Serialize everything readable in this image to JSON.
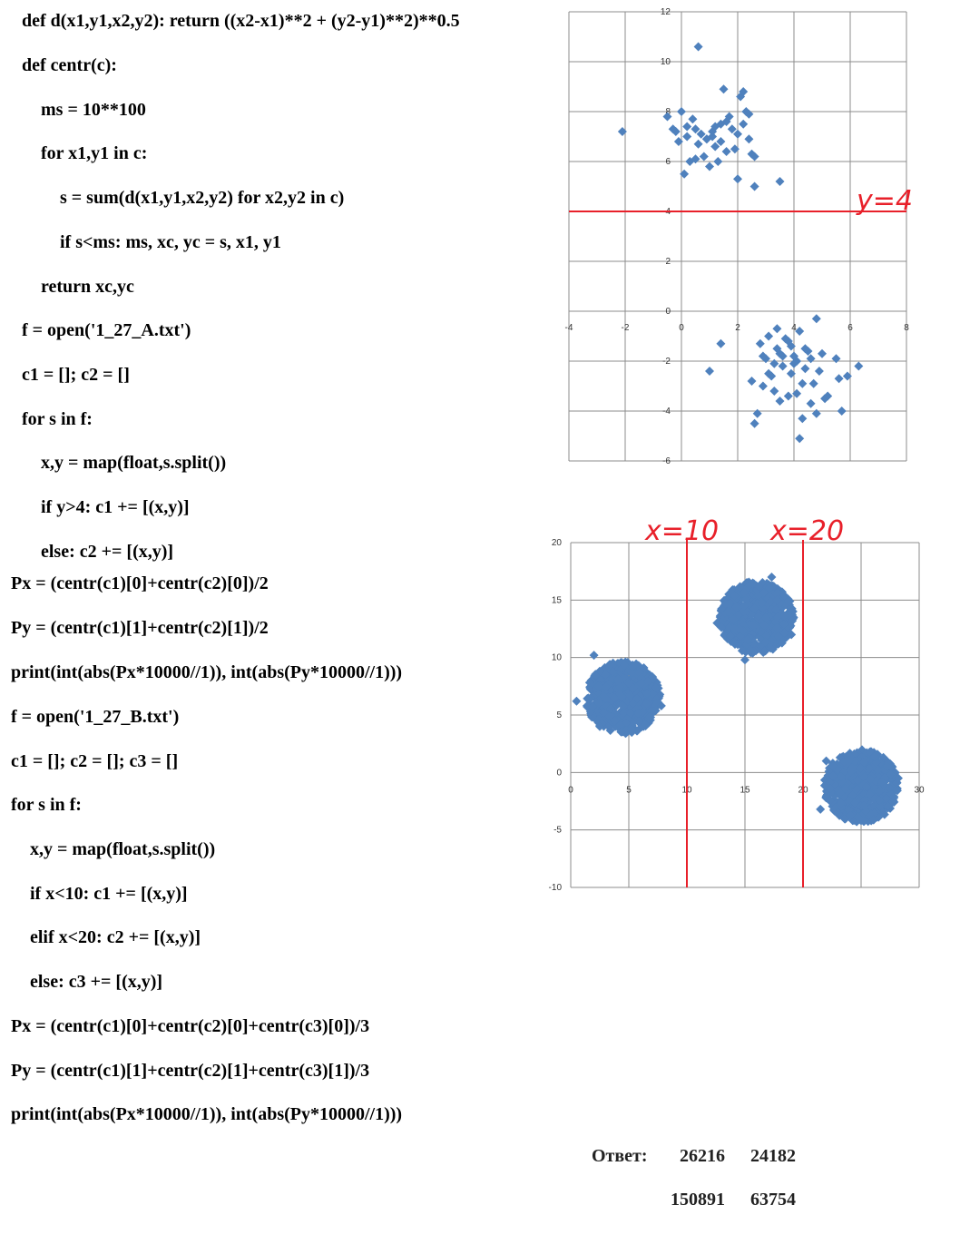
{
  "code": {
    "lines": [
      "def d(x1,y1,x2,y2): return ((x2-x1)**2 + (y2-y1)**2)**0.5",
      "def centr(c):",
      "ms = 10**100",
      "for x1,y1 in c:",
      "s = sum(d(x1,y1,x2,y2) for x2,y2 in c)",
      "if s<ms: ms, xc, yc = s, x1, y1",
      "return xc,yc",
      "f = open('1_27_A.txt')",
      "c1 = []; c2 = []",
      "for s in f:",
      "x,y = map(float,s.split())",
      "if y>4: c1 += [(x,y)]",
      "else: c2 += [(x,y)]",
      "Px = (centr(c1)[0]+centr(c2)[0])/2",
      "Py = (centr(c1)[1]+centr(c2)[1])/2",
      "print(int(abs(Px*10000//1)), int(abs(Py*10000//1)))",
      "f = open('1_27_B.txt')",
      "c1 = []; c2 = []; c3 = []",
      "for s in f:",
      "x,y = map(float,s.split())",
      "if x<10: c1 += [(x,y)]",
      "elif x<20: c2 += [(x,y)]",
      "else: c3 += [(x,y)]",
      "Px = (centr(c1)[0]+centr(c2)[0]+centr(c3)[0])/3",
      "Py = (centr(c1)[1]+centr(c2)[1]+centr(c3)[1])/3",
      "print(int(abs(Px*10000//1)), int(abs(Py*10000//1)))"
    ]
  },
  "chart_data": [
    {
      "type": "scatter",
      "xlim": [
        -4,
        8
      ],
      "ylim": [
        -6,
        12
      ],
      "x_ticks": [
        "-4",
        "-2",
        "0",
        "2",
        "4",
        "6",
        "8"
      ],
      "y_ticks": [
        "-6",
        "-4",
        "-2",
        "0",
        "2",
        "4",
        "6",
        "8",
        "10",
        "12"
      ],
      "grid": true,
      "marker_color": "#4f81bd",
      "annotation_color": "#e8202a",
      "annotation": "y=4",
      "divider_y": 4,
      "series": [
        {
          "x": [
            0.6,
            -2.1,
            -0.5,
            -0.2,
            0.2,
            0.4,
            0.5,
            0.7,
            0.9,
            1.1,
            1.2,
            1.4,
            1.6,
            1.8,
            2.0,
            2.2,
            2.3,
            1.5,
            1.0,
            0.8,
            0.3,
            0.1,
            0.0,
            -0.1,
            1.7,
            2.1,
            2.4,
            2.6,
            1.3,
            0.6,
            1.9,
            2.5,
            2.2,
            3.5,
            2.6,
            1.1,
            0.2,
            1.6,
            0.9,
            -0.3,
            1.4,
            2.0,
            1.2,
            0.5,
            2.4
          ],
          "y": [
            10.6,
            7.2,
            7.8,
            7.2,
            7.4,
            7.7,
            7.3,
            7.1,
            6.9,
            7.0,
            6.6,
            7.5,
            7.6,
            7.3,
            7.1,
            7.5,
            8.0,
            8.9,
            5.8,
            6.2,
            6.0,
            5.5,
            8.0,
            6.8,
            7.8,
            8.6,
            7.9,
            6.2,
            6.0,
            6.7,
            6.5,
            6.3,
            8.8,
            5.2,
            5.0,
            7.2,
            7.0,
            6.4,
            6.9,
            7.3,
            6.8,
            5.3,
            7.4,
            6.1,
            6.9
          ]
        },
        {
          "x": [
            4.8,
            1.4,
            1.0,
            2.5,
            2.9,
            3.1,
            3.3,
            3.5,
            3.7,
            3.9,
            4.1,
            4.2,
            4.4,
            4.5,
            3.0,
            3.2,
            3.4,
            3.6,
            3.8,
            4.0,
            4.3,
            4.6,
            4.9,
            5.1,
            5.5,
            5.7,
            5.9,
            6.3,
            2.6,
            2.7,
            2.9,
            3.3,
            3.5,
            3.8,
            4.1,
            4.3,
            4.6,
            4.8,
            5.2,
            5.6,
            3.1,
            3.6,
            4.0,
            4.4,
            4.7,
            2.8,
            3.4,
            3.9,
            4.2,
            5.0
          ],
          "y": [
            -0.3,
            -1.3,
            -2.4,
            -2.8,
            -1.8,
            -2.5,
            -2.1,
            -1.7,
            -1.1,
            -1.4,
            -2.0,
            -0.8,
            -2.3,
            -1.6,
            -1.9,
            -2.6,
            -1.5,
            -2.2,
            -1.2,
            -1.8,
            -2.9,
            -1.9,
            -2.4,
            -3.5,
            -1.9,
            -4.0,
            -2.6,
            -2.2,
            -4.5,
            -4.1,
            -3.0,
            -3.2,
            -3.6,
            -3.4,
            -3.3,
            -4.3,
            -3.7,
            -4.1,
            -3.4,
            -2.7,
            -1.0,
            -1.8,
            -2.1,
            -1.5,
            -2.9,
            -1.3,
            -0.7,
            -2.5,
            -5.1,
            -1.7
          ]
        }
      ]
    },
    {
      "type": "scatter",
      "xlim": [
        0,
        30
      ],
      "ylim": [
        -10,
        20
      ],
      "x_ticks": [
        "0",
        "5",
        "10",
        "15",
        "20",
        "25",
        "30"
      ],
      "y_ticks": [
        "-10",
        "-5",
        "0",
        "5",
        "10",
        "15",
        "20"
      ],
      "grid": true,
      "marker_color": "#4f81bd",
      "annotation_color": "#e8202a",
      "annotations": [
        "x=10",
        "x=20"
      ],
      "dividers_x": [
        10,
        20
      ],
      "clusters": [
        {
          "center_x": 4.5,
          "center_y": 6.5,
          "radius": 3.2,
          "outliers_x": [
            0.5,
            2.0,
            7.8,
            2.5
          ],
          "outliers_y": [
            6.2,
            10.2,
            5.8,
            4.0
          ]
        },
        {
          "center_x": 16.0,
          "center_y": 13.5,
          "radius": 3.2,
          "outliers_x": [
            17.3,
            12.6,
            15.0,
            19.0
          ],
          "outliers_y": [
            17.0,
            13.0,
            9.8,
            12.0
          ]
        },
        {
          "center_x": 25.0,
          "center_y": -1.2,
          "radius": 3.2,
          "outliers_x": [
            21.5,
            28.2,
            25.0,
            22.0
          ],
          "outliers_y": [
            -3.2,
            -0.5,
            -4.2,
            1.0
          ]
        }
      ]
    }
  ],
  "answer": {
    "label": "Ответ:",
    "row1": [
      "26216",
      "24182"
    ],
    "row2": [
      "150891",
      "63754"
    ]
  }
}
